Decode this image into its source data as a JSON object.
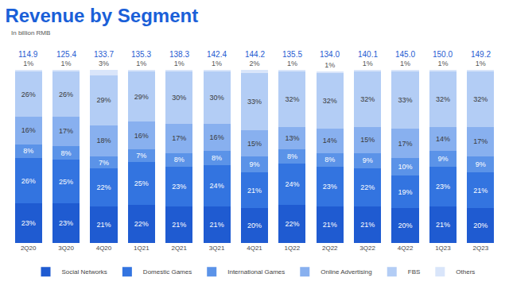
{
  "chart_data": {
    "type": "bar",
    "title": "Revenue by Segment",
    "subtitle": "In billion RMB",
    "categories": [
      "2Q20",
      "3Q20",
      "4Q20",
      "1Q21",
      "2Q21",
      "3Q21",
      "4Q21",
      "1Q22",
      "2Q22",
      "3Q22",
      "4Q22",
      "1Q23",
      "2Q23"
    ],
    "series": [
      {
        "name": "Social Networks",
        "color": "#1f5bd1",
        "values": [
          23,
          23,
          21,
          22,
          21,
          21,
          20,
          22,
          21,
          21,
          20,
          21,
          20
        ],
        "value_labels": [
          "23%",
          "23%",
          "21%",
          "22%",
          "21%",
          "21%",
          "20%",
          "22%",
          "21%",
          "21%",
          "20%",
          "21%",
          "20%"
        ]
      },
      {
        "name": "Domestic Games",
        "color": "#3374e0",
        "values": [
          26,
          25,
          22,
          25,
          23,
          24,
          21,
          24,
          23,
          22,
          19,
          23,
          21
        ],
        "value_labels": [
          "26%",
          "25%",
          "22%",
          "25%",
          "23%",
          "24%",
          "21%",
          "24%",
          "23%",
          "22%",
          "19%",
          "23%",
          "21%"
        ]
      },
      {
        "name": "International Games",
        "color": "#5b93e8",
        "values": [
          8,
          8,
          7,
          7,
          8,
          8,
          9,
          8,
          8,
          9,
          10,
          9,
          9
        ],
        "value_labels": [
          "8%",
          "8%",
          "7%",
          "7%",
          "8%",
          "8%",
          "9%",
          "8%",
          "8%",
          "9%",
          "10%",
          "9%",
          "9%"
        ]
      },
      {
        "name": "Online Advertising",
        "color": "#88b0ef",
        "values": [
          16,
          17,
          18,
          16,
          17,
          16,
          15,
          13,
          14,
          15,
          17,
          14,
          17
        ],
        "value_labels": [
          "16%",
          "17%",
          "18%",
          "16%",
          "17%",
          "16%",
          "15%",
          "13%",
          "14%",
          "15%",
          "17%",
          "14%",
          "17%"
        ]
      },
      {
        "name": "FBS",
        "color": "#b3cdf5",
        "values": [
          26,
          26,
          29,
          29,
          30,
          30,
          33,
          32,
          32,
          32,
          33,
          32,
          32
        ],
        "value_labels": [
          "26%",
          "26%",
          "29%",
          "29%",
          "30%",
          "30%",
          "33%",
          "32%",
          "32%",
          "32%",
          "33%",
          "32%",
          "32%"
        ]
      },
      {
        "name": "Others",
        "color": "#d9e5fa",
        "values": [
          1,
          1,
          3,
          1,
          1,
          1,
          2,
          1,
          1,
          1,
          1,
          1,
          1
        ],
        "value_labels": [
          "1%",
          "1%",
          "3%",
          "1%",
          "1%",
          "1%",
          "2%",
          "1%",
          "1%",
          "1%",
          "1%",
          "1%",
          "1%"
        ]
      }
    ],
    "totals": {
      "values": [
        114.9,
        125.4,
        133.7,
        135.3,
        138.3,
        142.4,
        144.2,
        135.5,
        134.0,
        140.1,
        145.0,
        150.0,
        149.2
      ],
      "value_labels": [
        "114.9",
        "125.4",
        "133.7",
        "135.3",
        "138.3",
        "142.4",
        "144.2",
        "135.5",
        "134.0",
        "140.1",
        "145.0",
        "150.0",
        "149.2"
      ]
    },
    "ylim": [
      0,
      100
    ],
    "stacked": true,
    "data_labels": true,
    "legend": "bottom",
    "tick_labels": "x",
    "grid": false
  }
}
